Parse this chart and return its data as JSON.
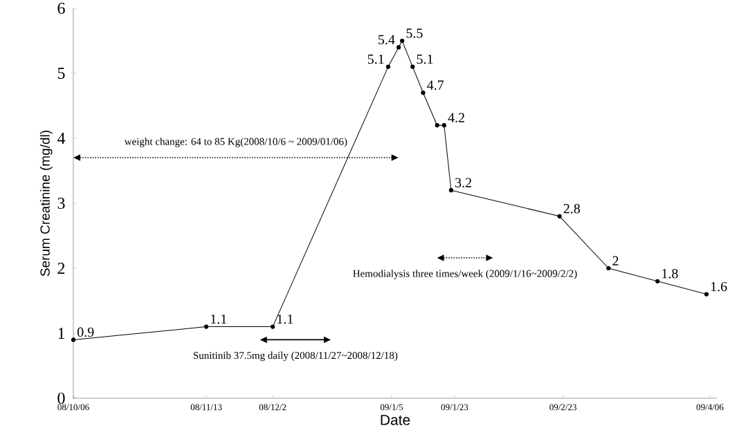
{
  "chart_data": {
    "type": "line",
    "xlabel": "Date",
    "ylabel": "Serum Creatinine (mg/dl)",
    "xlim": [
      "2008-10-06",
      "2009-04-08"
    ],
    "ylim": [
      0,
      6
    ],
    "yticks": [
      0,
      1,
      2,
      3,
      4,
      5,
      6
    ],
    "xticks": [
      {
        "value": "2008-10-06",
        "label": "08/10/06"
      },
      {
        "value": "2008-11-13",
        "label": "08/11/13"
      },
      {
        "value": "2008-12-02",
        "label": "08/12/2"
      },
      {
        "value": "2009-01-05",
        "label": "09/1/5"
      },
      {
        "value": "2009-01-23",
        "label": "09/1/23"
      },
      {
        "value": "2009-02-23",
        "label": "09/2/23"
      },
      {
        "value": "2009-04-06",
        "label": "09/4/06"
      }
    ],
    "grid": false,
    "marker": "circle",
    "series": [
      {
        "color": "#000000",
        "x": [
          "2008-10-06",
          "2008-11-13",
          "2008-12-02",
          "2009-01-04",
          "2009-01-07",
          "2009-01-08",
          "2009-01-11",
          "2009-01-14",
          "2009-01-18",
          "2009-01-20",
          "2009-01-22",
          "2009-02-22",
          "2009-03-08",
          "2009-03-22",
          "2009-04-05"
        ],
        "values": [
          0.9,
          1.1,
          1.1,
          5.1,
          5.4,
          5.5,
          5.1,
          4.7,
          4.2,
          4.2,
          3.2,
          2.8,
          2,
          1.8,
          1.6
        ],
        "value_labels": [
          "0.9",
          "1.1",
          "1.1",
          "5.1",
          "5.4",
          "5.5",
          "5.1",
          "4.7",
          null,
          "4.2",
          "3.2",
          "2.8",
          "2",
          "1.8",
          "1.6"
        ]
      }
    ],
    "annotations": [
      "weight change: 64 to 85 Kg(2008/10/6 ~ 2009/01/06)",
      "Hemodialysis three times/week (2009/1/16~2009/2/2)",
      "Sunitinib 37.5mg daily (2008/11/27~2008/12/18)"
    ]
  }
}
